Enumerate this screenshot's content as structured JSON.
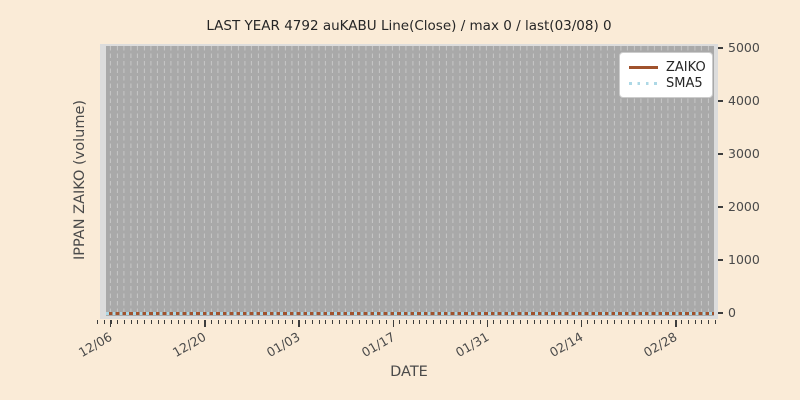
{
  "colors": {
    "figure_bg": "#faebd7",
    "plot_frame": "#dcdcdc",
    "plot_bg": "#a9a9a9",
    "gridline": "#c6c6c6",
    "tick": "#3d3d3d",
    "label_text": "#4a4a4a",
    "title_text": "#262626",
    "legend_bg": "#ffffff",
    "legend_border": "#cccccc"
  },
  "chart_data": {
    "type": "line",
    "title": "LAST YEAR 4792 auKABU Line(Close) / max 0 / last(03/08) 0",
    "xlabel": "DATE",
    "ylabel": "IPPAN ZAIKO (volume)",
    "ylim": [
      0,
      5000
    ],
    "yticks": [
      0,
      1000,
      2000,
      3000,
      4000,
      5000
    ],
    "yticks_side": "right",
    "x_major_ticks": [
      "12/06",
      "12/20",
      "01/03",
      "01/17",
      "01/31",
      "02/14",
      "02/28"
    ],
    "x_minor_tick_interval_days": 1,
    "x_major_tick_interval_days": 14,
    "grid": "vertical dashed daily gridlines on gray plot background",
    "legend_position": "upper right",
    "series": [
      {
        "name": "ZAIKO",
        "color": "#a0522d",
        "line_style": "solid",
        "constant_value": 0
      },
      {
        "name": "SMA5",
        "color": "#add8e6",
        "line_style": "dotted",
        "constant_value": 0
      }
    ],
    "stats_from_title": {
      "max": 0,
      "last_date": "03/08",
      "last_value": 0
    }
  }
}
